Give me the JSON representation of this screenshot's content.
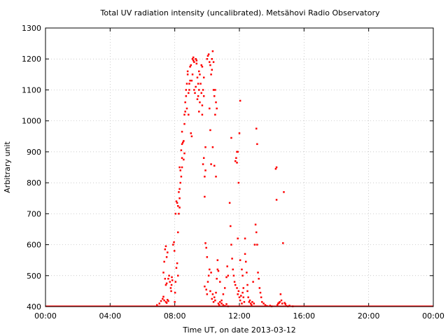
{
  "chart_data": {
    "type": "scatter",
    "title": "Total UV radiation intensity (uncalibrated). Metsähovi Radio Observatory",
    "xlabel": "Time UT, on date 2013-03-12",
    "ylabel": "Arbitrary unit",
    "xlim": [
      0,
      24
    ],
    "ylim": [
      400,
      1300
    ],
    "x_unit": "hours UT",
    "x_ticks": [
      {
        "value": 0,
        "label": "00:00"
      },
      {
        "value": 4,
        "label": "04:00"
      },
      {
        "value": 8,
        "label": "08:00"
      },
      {
        "value": 12,
        "label": "12:00"
      },
      {
        "value": 16,
        "label": "16:00"
      },
      {
        "value": 20,
        "label": "20:00"
      },
      {
        "value": 24,
        "label": "00:00"
      }
    ],
    "y_ticks": [
      {
        "value": 400,
        "label": "400"
      },
      {
        "value": 500,
        "label": "500"
      },
      {
        "value": 600,
        "label": "600"
      },
      {
        "value": 700,
        "label": "700"
      },
      {
        "value": 800,
        "label": "800"
      },
      {
        "value": 900,
        "label": "900"
      },
      {
        "value": 1000,
        "label": "1000"
      },
      {
        "value": 1100,
        "label": "1100"
      },
      {
        "value": 1200,
        "label": "1200"
      },
      {
        "value": 1300,
        "label": "1300"
      }
    ],
    "grid": true,
    "marker_color": "#ff0000",
    "baseline": {
      "x_start": 0,
      "x_end": 24,
      "value": 400
    },
    "points": [
      [
        6.9,
        405
      ],
      [
        7.05,
        410
      ],
      [
        7.15,
        418
      ],
      [
        7.25,
        425
      ],
      [
        7.3,
        432
      ],
      [
        7.35,
        420
      ],
      [
        7.45,
        415
      ],
      [
        7.5,
        412
      ],
      [
        7.55,
        422
      ],
      [
        7.6,
        418
      ],
      [
        7.3,
        510
      ],
      [
        7.35,
        545
      ],
      [
        7.4,
        585
      ],
      [
        7.45,
        595
      ],
      [
        7.5,
        560
      ],
      [
        7.55,
        575
      ],
      [
        7.4,
        490
      ],
      [
        7.45,
        470
      ],
      [
        7.5,
        475
      ],
      [
        7.6,
        490
      ],
      [
        7.65,
        500
      ],
      [
        7.7,
        480
      ],
      [
        7.75,
        460
      ],
      [
        7.78,
        450
      ],
      [
        7.8,
        470
      ],
      [
        7.82,
        495
      ],
      [
        7.85,
        485
      ],
      [
        7.9,
        600
      ],
      [
        7.95,
        608
      ],
      [
        7.98,
        580
      ],
      [
        8.0,
        415
      ],
      [
        8.02,
        445
      ],
      [
        8.05,
        480
      ],
      [
        8.1,
        525
      ],
      [
        8.15,
        540
      ],
      [
        8.2,
        500
      ],
      [
        8.2,
        640
      ],
      [
        8.25,
        700
      ],
      [
        8.3,
        720
      ],
      [
        8.3,
        750
      ],
      [
        8.05,
        700
      ],
      [
        8.1,
        740
      ],
      [
        8.15,
        735
      ],
      [
        8.2,
        725
      ],
      [
        8.3,
        780
      ],
      [
        8.35,
        800
      ],
      [
        8.35,
        840
      ],
      [
        8.4,
        820
      ],
      [
        8.45,
        850
      ],
      [
        8.45,
        880
      ],
      [
        8.25,
        770
      ],
      [
        8.3,
        850
      ],
      [
        8.4,
        905
      ],
      [
        8.45,
        925
      ],
      [
        8.5,
        930
      ],
      [
        8.55,
        935
      ],
      [
        8.6,
        895
      ],
      [
        8.55,
        875
      ],
      [
        8.45,
        965
      ],
      [
        8.6,
        990
      ],
      [
        8.6,
        1020
      ],
      [
        8.65,
        1030
      ],
      [
        8.65,
        1060
      ],
      [
        8.7,
        1080
      ],
      [
        8.7,
        1100
      ],
      [
        8.75,
        1040
      ],
      [
        8.75,
        1120
      ],
      [
        8.8,
        1150
      ],
      [
        8.8,
        1160
      ],
      [
        8.85,
        1020
      ],
      [
        8.85,
        1090
      ],
      [
        8.9,
        1100
      ],
      [
        8.9,
        1120
      ],
      [
        8.95,
        1130
      ],
      [
        8.95,
        1175
      ],
      [
        9.0,
        1180
      ],
      [
        9.0,
        960
      ],
      [
        9.05,
        950
      ],
      [
        9.05,
        1130
      ],
      [
        9.1,
        1150
      ],
      [
        9.1,
        1200
      ],
      [
        9.15,
        1205
      ],
      [
        9.15,
        1195
      ],
      [
        9.2,
        1190
      ],
      [
        9.2,
        1100
      ],
      [
        9.25,
        1090
      ],
      [
        9.3,
        1110
      ],
      [
        9.3,
        1200
      ],
      [
        9.35,
        1195
      ],
      [
        9.35,
        1185
      ],
      [
        9.4,
        1140
      ],
      [
        9.4,
        1070
      ],
      [
        9.45,
        1080
      ],
      [
        9.45,
        1120
      ],
      [
        9.5,
        1100
      ],
      [
        9.5,
        1160
      ],
      [
        9.55,
        1150
      ],
      [
        9.6,
        1120
      ],
      [
        9.65,
        1090
      ],
      [
        9.65,
        1180
      ],
      [
        9.7,
        1175
      ],
      [
        9.7,
        1050
      ],
      [
        9.75,
        1100
      ],
      [
        9.8,
        1140
      ],
      [
        9.8,
        1080
      ],
      [
        9.5,
        1030
      ],
      [
        9.55,
        1060
      ],
      [
        9.7,
        1020
      ],
      [
        9.75,
        860
      ],
      [
        9.8,
        880
      ],
      [
        9.85,
        820
      ],
      [
        9.85,
        755
      ],
      [
        9.9,
        915
      ],
      [
        9.9,
        840
      ],
      [
        10.0,
        1200
      ],
      [
        10.05,
        1210
      ],
      [
        10.1,
        1215
      ],
      [
        10.15,
        1190
      ],
      [
        10.2,
        1180
      ],
      [
        10.25,
        1150
      ],
      [
        10.3,
        1200
      ],
      [
        10.3,
        1165
      ],
      [
        10.35,
        1225
      ],
      [
        10.4,
        1190
      ],
      [
        10.45,
        1080
      ],
      [
        10.5,
        1020
      ],
      [
        10.5,
        1100
      ],
      [
        10.55,
        1060
      ],
      [
        10.6,
        1040
      ],
      [
        10.4,
        1100
      ],
      [
        10.2,
        970
      ],
      [
        10.35,
        915
      ],
      [
        10.25,
        860
      ],
      [
        10.45,
        855
      ],
      [
        10.55,
        820
      ],
      [
        10.15,
        1040
      ],
      [
        9.9,
        605
      ],
      [
        9.95,
        590
      ],
      [
        10.0,
        560
      ],
      [
        9.85,
        465
      ],
      [
        9.95,
        455
      ],
      [
        10.0,
        440
      ],
      [
        10.05,
        480
      ],
      [
        10.1,
        500
      ],
      [
        10.15,
        520
      ],
      [
        10.2,
        450
      ],
      [
        10.25,
        510
      ],
      [
        10.3,
        425
      ],
      [
        10.35,
        440
      ],
      [
        10.4,
        415
      ],
      [
        10.45,
        430
      ],
      [
        10.5,
        420
      ],
      [
        10.55,
        445
      ],
      [
        10.6,
        490
      ],
      [
        10.65,
        520
      ],
      [
        10.7,
        410
      ],
      [
        10.75,
        405
      ],
      [
        10.8,
        415
      ],
      [
        10.9,
        410
      ],
      [
        11.0,
        405
      ],
      [
        11.1,
        402
      ],
      [
        11.2,
        408
      ],
      [
        11.3,
        401
      ],
      [
        10.65,
        550
      ],
      [
        10.7,
        515
      ],
      [
        10.8,
        480
      ],
      [
        10.9,
        420
      ],
      [
        11.0,
        440
      ],
      [
        11.1,
        460
      ],
      [
        11.2,
        495
      ],
      [
        11.25,
        530
      ],
      [
        11.3,
        500
      ],
      [
        11.4,
        735
      ],
      [
        11.45,
        660
      ],
      [
        11.5,
        600
      ],
      [
        11.55,
        555
      ],
      [
        11.6,
        520
      ],
      [
        11.65,
        500
      ],
      [
        11.7,
        480
      ],
      [
        11.75,
        470
      ],
      [
        11.85,
        460
      ],
      [
        11.95,
        450
      ],
      [
        11.9,
        440
      ],
      [
        12.0,
        430
      ],
      [
        12.05,
        420
      ],
      [
        12.1,
        435
      ],
      [
        12.15,
        410
      ],
      [
        12.2,
        445
      ],
      [
        12.25,
        460
      ],
      [
        12.3,
        415
      ],
      [
        11.5,
        945
      ],
      [
        11.75,
        870
      ],
      [
        11.8,
        880
      ],
      [
        11.85,
        900
      ],
      [
        11.9,
        900
      ],
      [
        11.95,
        800
      ],
      [
        12.0,
        960
      ],
      [
        12.05,
        1065
      ],
      [
        11.85,
        865
      ],
      [
        11.9,
        620
      ],
      [
        12.05,
        550
      ],
      [
        12.15,
        520
      ],
      [
        12.2,
        500
      ],
      [
        12.25,
        430
      ],
      [
        12.35,
        570
      ],
      [
        12.4,
        545
      ],
      [
        12.45,
        510
      ],
      [
        12.5,
        470
      ],
      [
        12.35,
        620
      ],
      [
        12.5,
        450
      ],
      [
        12.55,
        430
      ],
      [
        12.6,
        415
      ],
      [
        12.65,
        420
      ],
      [
        12.7,
        410
      ],
      [
        12.75,
        405
      ],
      [
        12.8,
        415
      ],
      [
        12.9,
        410
      ],
      [
        12.85,
        480
      ],
      [
        12.95,
        600
      ],
      [
        13.0,
        665
      ],
      [
        13.05,
        640
      ],
      [
        13.1,
        600
      ],
      [
        13.15,
        510
      ],
      [
        13.2,
        490
      ],
      [
        13.25,
        460
      ],
      [
        13.3,
        445
      ],
      [
        13.05,
        975
      ],
      [
        13.1,
        925
      ],
      [
        13.35,
        430
      ],
      [
        13.4,
        415
      ],
      [
        13.5,
        410
      ],
      [
        13.6,
        405
      ],
      [
        13.7,
        402
      ],
      [
        13.9,
        403
      ],
      [
        14.0,
        401
      ],
      [
        14.25,
        845
      ],
      [
        14.3,
        850
      ],
      [
        14.3,
        745
      ],
      [
        14.35,
        405
      ],
      [
        14.4,
        410
      ],
      [
        14.45,
        412
      ],
      [
        14.5,
        415
      ],
      [
        14.55,
        440
      ],
      [
        14.6,
        420
      ],
      [
        14.65,
        410
      ],
      [
        14.7,
        605
      ],
      [
        14.75,
        770
      ],
      [
        14.8,
        412
      ],
      [
        14.85,
        408
      ],
      [
        14.9,
        402
      ],
      [
        15.0,
        401
      ],
      [
        15.1,
        403
      ],
      [
        15.3,
        401
      ]
    ]
  }
}
